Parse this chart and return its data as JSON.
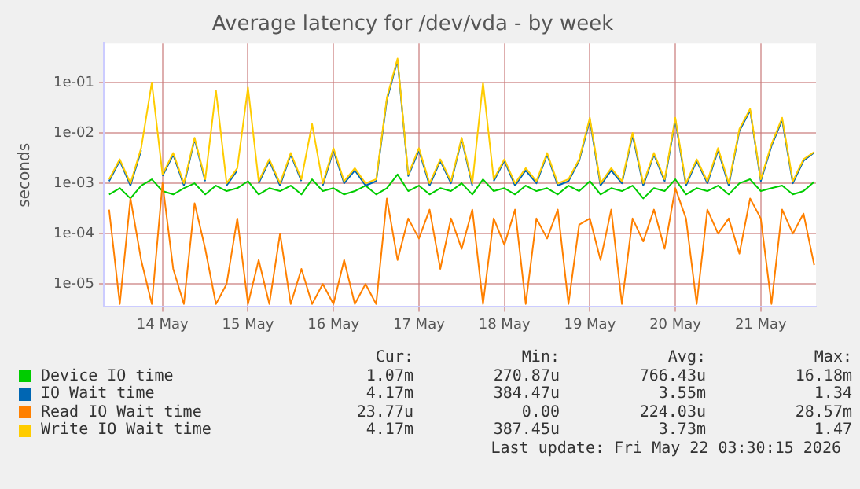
{
  "chart_data": {
    "type": "line",
    "title": "Average latency for /dev/vda - by week",
    "ylabel": "seconds",
    "log": "y",
    "grid": true,
    "legend": "bottom",
    "marker": "none",
    "line_style": "solid",
    "xlim": [
      "2026-05-13T19:30",
      "2026-05-22T03:30"
    ],
    "xticks": [
      {
        "value": "2026-05-14T12:00",
        "label": "14 May"
      },
      {
        "value": "2026-05-15T12:00",
        "label": "15 May"
      },
      {
        "value": "2026-05-16T12:00",
        "label": "16 May"
      },
      {
        "value": "2026-05-17T12:00",
        "label": "17 May"
      },
      {
        "value": "2026-05-18T12:00",
        "label": "18 May"
      },
      {
        "value": "2026-05-19T12:00",
        "label": "19 May"
      },
      {
        "value": "2026-05-20T12:00",
        "label": "20 May"
      },
      {
        "value": "2026-05-21T12:00",
        "label": "21 May"
      }
    ],
    "ylim": [
      3.5e-06,
      0.6
    ],
    "yticks": [
      {
        "value": 1e-05,
        "label": "1e-05"
      },
      {
        "value": 0.0001,
        "label": "1e-04"
      },
      {
        "value": 0.001,
        "label": "1e-03"
      },
      {
        "value": 0.01,
        "label": "1e-02"
      },
      {
        "value": 0.1,
        "label": "1e-01"
      }
    ],
    "x": [
      "2026-05-13T21:00",
      "2026-05-14T00:00",
      "2026-05-14T03:00",
      "2026-05-14T06:00",
      "2026-05-14T09:00",
      "2026-05-14T12:00",
      "2026-05-14T15:00",
      "2026-05-14T18:00",
      "2026-05-14T21:00",
      "2026-05-15T00:00",
      "2026-05-15T03:00",
      "2026-05-15T06:00",
      "2026-05-15T09:00",
      "2026-05-15T12:00",
      "2026-05-15T15:00",
      "2026-05-15T18:00",
      "2026-05-15T21:00",
      "2026-05-16T00:00",
      "2026-05-16T03:00",
      "2026-05-16T06:00",
      "2026-05-16T09:00",
      "2026-05-16T12:00",
      "2026-05-16T15:00",
      "2026-05-16T18:00",
      "2026-05-16T21:00",
      "2026-05-17T00:00",
      "2026-05-17T03:00",
      "2026-05-17T06:00",
      "2026-05-17T09:00",
      "2026-05-17T12:00",
      "2026-05-17T15:00",
      "2026-05-17T18:00",
      "2026-05-17T21:00",
      "2026-05-18T00:00",
      "2026-05-18T03:00",
      "2026-05-18T06:00",
      "2026-05-18T09:00",
      "2026-05-18T12:00",
      "2026-05-18T15:00",
      "2026-05-18T18:00",
      "2026-05-18T21:00",
      "2026-05-19T00:00",
      "2026-05-19T03:00",
      "2026-05-19T06:00",
      "2026-05-19T09:00",
      "2026-05-19T12:00",
      "2026-05-19T15:00",
      "2026-05-19T18:00",
      "2026-05-19T21:00",
      "2026-05-20T00:00",
      "2026-05-20T03:00",
      "2026-05-20T06:00",
      "2026-05-20T09:00",
      "2026-05-20T12:00",
      "2026-05-20T15:00",
      "2026-05-20T18:00",
      "2026-05-20T21:00",
      "2026-05-21T00:00",
      "2026-05-21T03:00",
      "2026-05-21T06:00",
      "2026-05-21T09:00",
      "2026-05-21T12:00",
      "2026-05-21T15:00",
      "2026-05-21T18:00",
      "2026-05-21T21:00",
      "2026-05-22T00:00",
      "2026-05-22T03:00"
    ],
    "series": [
      {
        "name": "Device IO time",
        "color": "#00cc00",
        "values": [
          0.0006,
          0.0008,
          0.0005,
          0.0009,
          0.0012,
          0.0007,
          0.0006,
          0.0008,
          0.001,
          0.0006,
          0.0009,
          0.0007,
          0.0008,
          0.0011,
          0.0006,
          0.0008,
          0.0007,
          0.0009,
          0.0006,
          0.0012,
          0.0007,
          0.0008,
          0.0006,
          0.0007,
          0.0009,
          0.0006,
          0.0008,
          0.0015,
          0.0007,
          0.0009,
          0.0006,
          0.0008,
          0.0007,
          0.001,
          0.0006,
          0.0012,
          0.0007,
          0.0008,
          0.0006,
          0.0009,
          0.0007,
          0.0008,
          0.0006,
          0.0009,
          0.0007,
          0.0011,
          0.0006,
          0.0008,
          0.0007,
          0.0009,
          0.0005,
          0.0008,
          0.0007,
          0.0012,
          0.0006,
          0.0008,
          0.0007,
          0.0009,
          0.0006,
          0.001,
          0.0012,
          0.0007,
          0.0008,
          0.0009,
          0.0006,
          0.0007,
          0.00107
        ]
      },
      {
        "name": "IO Wait time",
        "color": "#0066b3",
        "values": [
          0.0011,
          0.0028,
          0.0009,
          0.0045,
          null,
          0.0014,
          0.0037,
          0.0009,
          0.0075,
          0.0011,
          null,
          0.0009,
          0.0018,
          null,
          0.001,
          0.0028,
          0.0009,
          0.0037,
          0.0011,
          null,
          0.0009,
          0.0045,
          0.001,
          0.0018,
          0.0009,
          0.0011,
          0.045,
          0.28,
          0.0014,
          0.0045,
          0.0009,
          0.0028,
          0.001,
          0.0075,
          0.0009,
          null,
          0.0011,
          0.0028,
          0.0009,
          0.0018,
          0.001,
          0.0037,
          0.0009,
          0.0011,
          0.0028,
          0.018,
          0.0009,
          0.0018,
          0.001,
          0.009,
          0.0009,
          0.0037,
          0.0011,
          0.018,
          0.0009,
          0.0028,
          0.001,
          0.0045,
          0.0009,
          0.011,
          0.028,
          0.0011,
          0.0055,
          0.018,
          0.001,
          0.0028,
          0.0041
        ]
      },
      {
        "name": "Read IO Wait time",
        "color": "#ff8000",
        "values": [
          0.0003,
          4e-06,
          0.0005,
          3e-05,
          4e-06,
          0.001,
          2e-05,
          4e-06,
          0.0004,
          5e-05,
          4e-06,
          1e-05,
          0.0002,
          4e-06,
          3e-05,
          4e-06,
          0.0001,
          4e-06,
          2e-05,
          4e-06,
          1e-05,
          4e-06,
          3e-05,
          4e-06,
          1e-05,
          4e-06,
          0.0005,
          3e-05,
          0.0002,
          8e-05,
          0.0003,
          2e-05,
          0.0002,
          5e-05,
          0.0003,
          4e-06,
          0.0002,
          6e-05,
          0.0003,
          4e-06,
          0.0002,
          8e-05,
          0.0003,
          4e-06,
          0.00015,
          0.0002,
          3e-05,
          0.0003,
          4e-06,
          0.0002,
          7e-05,
          0.0003,
          5e-05,
          0.0008,
          0.0002,
          4e-06,
          0.0003,
          0.0001,
          0.0002,
          4e-05,
          0.0005,
          0.0002,
          4e-06,
          0.0003,
          0.0001,
          0.00025,
          2.38e-05
        ]
      },
      {
        "name": "Write IO Wait time",
        "color": "#ffcc00",
        "values": [
          0.0012,
          0.003,
          0.001,
          0.005,
          0.1,
          0.0015,
          0.004,
          0.001,
          0.008,
          0.0012,
          0.07,
          0.001,
          0.002,
          0.08,
          0.0011,
          0.003,
          0.001,
          0.004,
          0.0012,
          0.015,
          0.001,
          0.005,
          0.0011,
          0.002,
          0.001,
          0.0012,
          0.05,
          0.3,
          0.0015,
          0.005,
          0.001,
          0.003,
          0.0011,
          0.008,
          0.001,
          0.1,
          0.0012,
          0.003,
          0.001,
          0.002,
          0.0011,
          0.004,
          0.001,
          0.0012,
          0.003,
          0.02,
          0.001,
          0.002,
          0.0011,
          0.01,
          0.001,
          0.004,
          0.0012,
          0.02,
          0.001,
          0.003,
          0.0011,
          0.005,
          0.001,
          0.012,
          0.03,
          0.0012,
          0.006,
          0.02,
          0.0011,
          0.003,
          0.0042
        ]
      }
    ],
    "annotations": [
      "Cur:",
      "Min:",
      "Avg:",
      "Max:",
      "1.07m",
      "270.87u",
      "766.43u",
      "16.18m",
      "4.17m",
      "384.47u",
      "3.55m",
      "1.34",
      "23.77u",
      "0.00",
      "224.03u",
      "28.57m",
      "4.17m",
      "387.45u",
      "3.73m",
      "1.47",
      "Last update: Fri May 22 03:30:15 2026"
    ]
  }
}
